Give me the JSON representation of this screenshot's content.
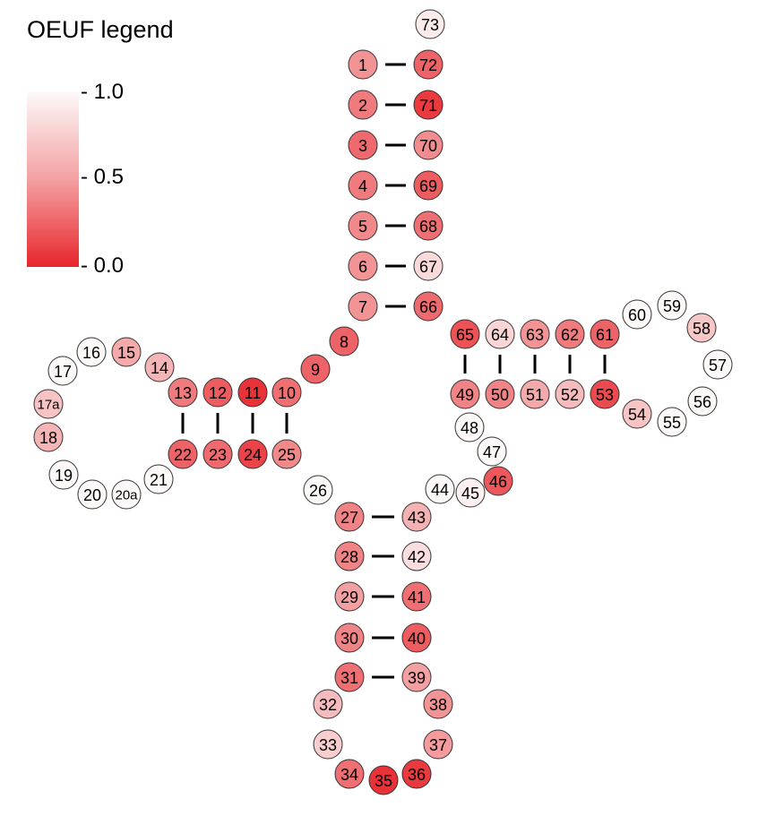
{
  "legend": {
    "title": "OEUF legend",
    "ticks": [
      {
        "label": "- 1.0",
        "value": 1.0
      },
      {
        "label": "- 0.5",
        "value": 0.5
      },
      {
        "label": "- 0.0",
        "value": 0.0
      }
    ],
    "colors": {
      "high": "#fdf9f9",
      "mid": "#f3a0a2",
      "low": "#e8262b"
    }
  },
  "nodes": [
    {
      "id": "73",
      "oeuf": 0.92
    },
    {
      "id": "1",
      "oeuf": 0.45
    },
    {
      "id": "72",
      "oeuf": 0.25
    },
    {
      "id": "2",
      "oeuf": 0.35
    },
    {
      "id": "71",
      "oeuf": 0.08
    },
    {
      "id": "3",
      "oeuf": 0.28
    },
    {
      "id": "70",
      "oeuf": 0.42
    },
    {
      "id": "4",
      "oeuf": 0.35
    },
    {
      "id": "69",
      "oeuf": 0.22
    },
    {
      "id": "5",
      "oeuf": 0.4
    },
    {
      "id": "68",
      "oeuf": 0.3
    },
    {
      "id": "6",
      "oeuf": 0.45
    },
    {
      "id": "67",
      "oeuf": 0.82
    },
    {
      "id": "7",
      "oeuf": 0.45
    },
    {
      "id": "66",
      "oeuf": 0.28
    },
    {
      "id": "8",
      "oeuf": 0.25
    },
    {
      "id": "9",
      "oeuf": 0.25
    },
    {
      "id": "65",
      "oeuf": 0.18
    },
    {
      "id": "64",
      "oeuf": 0.8
    },
    {
      "id": "63",
      "oeuf": 0.45
    },
    {
      "id": "62",
      "oeuf": 0.35
    },
    {
      "id": "61",
      "oeuf": 0.25
    },
    {
      "id": "60",
      "oeuf": 1.0
    },
    {
      "id": "59",
      "oeuf": 1.0
    },
    {
      "id": "58",
      "oeuf": 0.72
    },
    {
      "id": "57",
      "oeuf": 1.0
    },
    {
      "id": "56",
      "oeuf": 1.0
    },
    {
      "id": "55",
      "oeuf": 1.0
    },
    {
      "id": "54",
      "oeuf": 0.7
    },
    {
      "id": "49",
      "oeuf": 0.38
    },
    {
      "id": "50",
      "oeuf": 0.38
    },
    {
      "id": "51",
      "oeuf": 0.55
    },
    {
      "id": "52",
      "oeuf": 0.65
    },
    {
      "id": "53",
      "oeuf": 0.15
    },
    {
      "id": "48",
      "oeuf": 1.0
    },
    {
      "id": "47",
      "oeuf": 1.0
    },
    {
      "id": "46",
      "oeuf": 0.2
    },
    {
      "id": "45",
      "oeuf": 0.95
    },
    {
      "id": "44",
      "oeuf": 1.0
    },
    {
      "id": "16",
      "oeuf": 1.0
    },
    {
      "id": "15",
      "oeuf": 0.55
    },
    {
      "id": "14",
      "oeuf": 0.62
    },
    {
      "id": "17",
      "oeuf": 1.0
    },
    {
      "id": "17a",
      "oeuf": 0.7
    },
    {
      "id": "18",
      "oeuf": 0.62
    },
    {
      "id": "19",
      "oeuf": 1.0
    },
    {
      "id": "20",
      "oeuf": 1.0
    },
    {
      "id": "20a",
      "oeuf": 1.0
    },
    {
      "id": "21",
      "oeuf": 1.0
    },
    {
      "id": "13",
      "oeuf": 0.35
    },
    {
      "id": "12",
      "oeuf": 0.22
    },
    {
      "id": "11",
      "oeuf": 0.05
    },
    {
      "id": "10",
      "oeuf": 0.3
    },
    {
      "id": "22",
      "oeuf": 0.25
    },
    {
      "id": "23",
      "oeuf": 0.28
    },
    {
      "id": "24",
      "oeuf": 0.12
    },
    {
      "id": "25",
      "oeuf": 0.4
    },
    {
      "id": "26",
      "oeuf": 1.0
    },
    {
      "id": "27",
      "oeuf": 0.38
    },
    {
      "id": "43",
      "oeuf": 0.6
    },
    {
      "id": "28",
      "oeuf": 0.38
    },
    {
      "id": "42",
      "oeuf": 0.85
    },
    {
      "id": "29",
      "oeuf": 0.5
    },
    {
      "id": "41",
      "oeuf": 0.3
    },
    {
      "id": "30",
      "oeuf": 0.38
    },
    {
      "id": "40",
      "oeuf": 0.22
    },
    {
      "id": "31",
      "oeuf": 0.3
    },
    {
      "id": "39",
      "oeuf": 0.5
    },
    {
      "id": "32",
      "oeuf": 0.65
    },
    {
      "id": "38",
      "oeuf": 0.45
    },
    {
      "id": "33",
      "oeuf": 0.75
    },
    {
      "id": "37",
      "oeuf": 0.48
    },
    {
      "id": "34",
      "oeuf": 0.3
    },
    {
      "id": "35",
      "oeuf": 0.05
    },
    {
      "id": "36",
      "oeuf": 0.08
    }
  ],
  "pairs": [
    [
      "1",
      "72"
    ],
    [
      "2",
      "71"
    ],
    [
      "3",
      "70"
    ],
    [
      "4",
      "69"
    ],
    [
      "5",
      "68"
    ],
    [
      "6",
      "67"
    ],
    [
      "7",
      "66"
    ],
    [
      "65",
      "49"
    ],
    [
      "64",
      "50"
    ],
    [
      "63",
      "51"
    ],
    [
      "62",
      "52"
    ],
    [
      "61",
      "53"
    ],
    [
      "13",
      "22"
    ],
    [
      "12",
      "23"
    ],
    [
      "11",
      "24"
    ],
    [
      "10",
      "25"
    ],
    [
      "27",
      "43"
    ],
    [
      "28",
      "42"
    ],
    [
      "29",
      "41"
    ],
    [
      "30",
      "40"
    ],
    [
      "31",
      "39"
    ]
  ]
}
